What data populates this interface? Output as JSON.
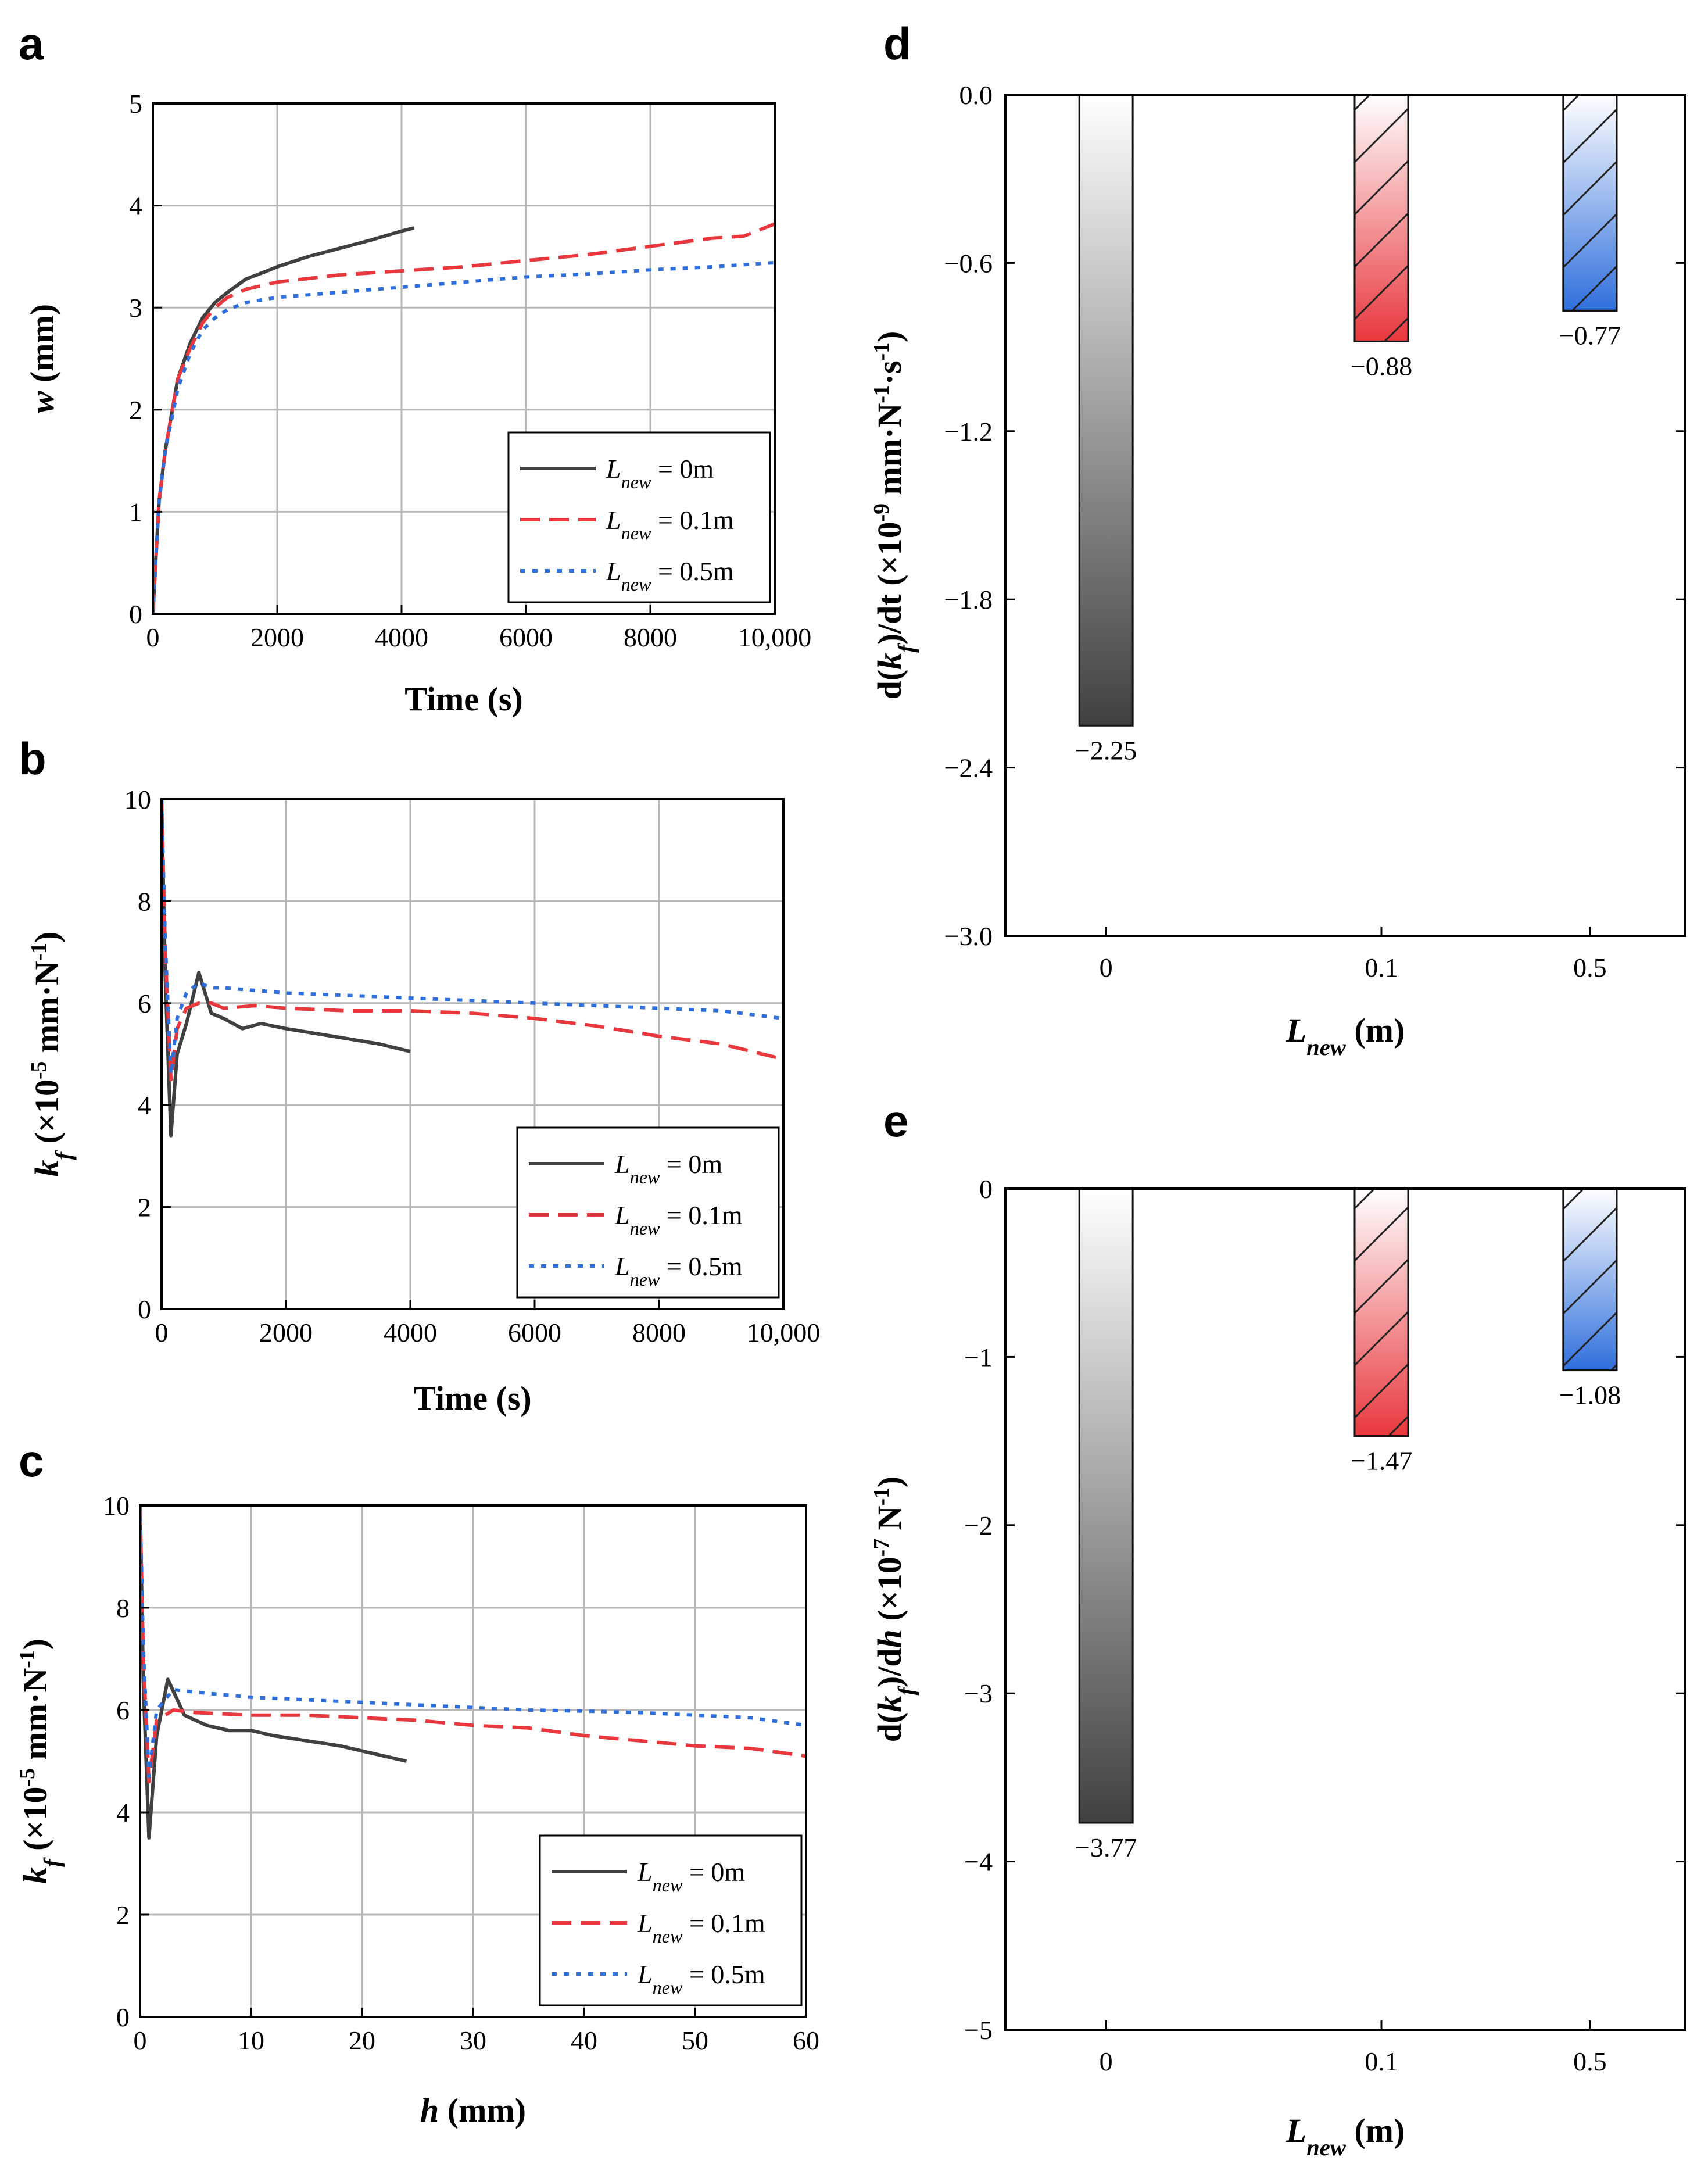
{
  "figure": {
    "panels": [
      "a",
      "b",
      "c",
      "d",
      "e"
    ]
  },
  "colors": {
    "black_series": "#404040",
    "red_series": "#e8383d",
    "blue_series": "#2f6fdc",
    "grid": "#b8b8b8"
  },
  "chart_data": [
    {
      "panel": "a",
      "type": "line",
      "title": "",
      "xlabel": "Time (s)",
      "ylabel": "w (mm)",
      "xlim": [
        0,
        10000
      ],
      "ylim": [
        0,
        5
      ],
      "xticks": [
        "0",
        "2000",
        "4000",
        "6000",
        "8000",
        "10,000"
      ],
      "yticks": [
        "0",
        "1",
        "2",
        "3",
        "4",
        "5"
      ],
      "grid": true,
      "legend_position": "bottom-right",
      "series": [
        {
          "name": "L_new = 0m",
          "label": "L",
          "sub": "new",
          "eq": " = 0m",
          "color": "#404040",
          "style": "solid",
          "x": [
            0,
            100,
            200,
            400,
            600,
            800,
            1000,
            1200,
            1500,
            1800,
            2000,
            2500,
            3000,
            3500,
            4000,
            4200
          ],
          "y": [
            0,
            1.1,
            1.6,
            2.3,
            2.65,
            2.9,
            3.05,
            3.15,
            3.28,
            3.35,
            3.4,
            3.5,
            3.58,
            3.66,
            3.75,
            3.78
          ]
        },
        {
          "name": "L_new = 0.1m",
          "label": "L",
          "sub": "new",
          "eq": " = 0.1m",
          "color": "#e8383d",
          "style": "dashed",
          "x": [
            0,
            100,
            200,
            400,
            600,
            800,
            1000,
            1200,
            1500,
            2000,
            3000,
            4000,
            5000,
            6000,
            7000,
            8000,
            9000,
            9500,
            10000
          ],
          "y": [
            0,
            1.1,
            1.6,
            2.3,
            2.6,
            2.85,
            3.0,
            3.1,
            3.18,
            3.25,
            3.32,
            3.36,
            3.4,
            3.46,
            3.52,
            3.6,
            3.68,
            3.7,
            3.82
          ]
        },
        {
          "name": "L_new = 0.5m",
          "label": "L",
          "sub": "new",
          "eq": " = 0.5m",
          "color": "#2f6fdc",
          "style": "dotted",
          "x": [
            0,
            100,
            200,
            400,
            600,
            800,
            1000,
            1200,
            1500,
            2000,
            3000,
            4000,
            5000,
            6000,
            7000,
            8000,
            9000,
            10000
          ],
          "y": [
            0,
            1.1,
            1.6,
            2.2,
            2.55,
            2.78,
            2.9,
            2.98,
            3.05,
            3.1,
            3.15,
            3.2,
            3.25,
            3.3,
            3.33,
            3.37,
            3.4,
            3.44
          ]
        }
      ]
    },
    {
      "panel": "b",
      "type": "line",
      "title": "",
      "xlabel": "Time (s)",
      "ylabel": "k_f (×10^-5 mm·N^-1)",
      "xlim": [
        0,
        10000
      ],
      "ylim": [
        0,
        10
      ],
      "xticks": [
        "0",
        "2000",
        "4000",
        "6000",
        "8000",
        "10,000"
      ],
      "yticks": [
        "0",
        "2",
        "4",
        "6",
        "8",
        "10"
      ],
      "grid": true,
      "legend_position": "bottom-right",
      "series": [
        {
          "name": "L_new = 0m",
          "label": "L",
          "sub": "new",
          "eq": " = 0m",
          "color": "#404040",
          "style": "solid",
          "x": [
            0,
            60,
            150,
            250,
            400,
            600,
            800,
            1000,
            1300,
            1600,
            2000,
            2500,
            3000,
            3500,
            4000
          ],
          "y": [
            10,
            6.5,
            3.4,
            5.0,
            5.6,
            6.6,
            5.8,
            5.7,
            5.5,
            5.6,
            5.5,
            5.4,
            5.3,
            5.2,
            5.05
          ]
        },
        {
          "name": "L_new = 0.1m",
          "label": "L",
          "sub": "new",
          "eq": " = 0.1m",
          "color": "#e8383d",
          "style": "dashed",
          "x": [
            0,
            60,
            150,
            250,
            400,
            600,
            800,
            1000,
            1500,
            2000,
            3000,
            4000,
            5000,
            6000,
            7000,
            8000,
            9000,
            10000
          ],
          "y": [
            10,
            7.0,
            4.5,
            5.5,
            5.9,
            6.0,
            6.0,
            5.9,
            5.95,
            5.9,
            5.85,
            5.85,
            5.8,
            5.7,
            5.55,
            5.35,
            5.2,
            4.9
          ]
        },
        {
          "name": "L_new = 0.5m",
          "label": "L",
          "sub": "new",
          "eq": " = 0.5m",
          "color": "#2f6fdc",
          "style": "dotted",
          "x": [
            0,
            60,
            150,
            250,
            400,
            600,
            800,
            1000,
            1500,
            2000,
            3000,
            4000,
            5000,
            6000,
            7000,
            8000,
            9000,
            10000
          ],
          "y": [
            10,
            7.2,
            4.6,
            5.7,
            6.2,
            6.4,
            6.3,
            6.3,
            6.25,
            6.2,
            6.15,
            6.1,
            6.05,
            6.0,
            5.95,
            5.9,
            5.85,
            5.7
          ]
        }
      ]
    },
    {
      "panel": "c",
      "type": "line",
      "title": "",
      "xlabel": "h (mm)",
      "ylabel": "k_f (×10^-5 mm·N^-1)",
      "xlim": [
        0,
        60
      ],
      "ylim": [
        0,
        10
      ],
      "xticks": [
        "0",
        "10",
        "20",
        "30",
        "40",
        "50",
        "60"
      ],
      "yticks": [
        "0",
        "2",
        "4",
        "6",
        "8",
        "10"
      ],
      "grid": true,
      "legend_position": "bottom-right",
      "series": [
        {
          "name": "L_new = 0m",
          "label": "L",
          "sub": "new",
          "eq": " = 0m",
          "color": "#404040",
          "style": "solid",
          "x": [
            0,
            0.3,
            0.8,
            1.5,
            2.5,
            4,
            6,
            8,
            10,
            12,
            15,
            18,
            21,
            24
          ],
          "y": [
            10,
            6.5,
            3.5,
            5.5,
            6.6,
            5.9,
            5.7,
            5.6,
            5.6,
            5.5,
            5.4,
            5.3,
            5.15,
            5.0
          ]
        },
        {
          "name": "L_new = 0.1m",
          "label": "L",
          "sub": "new",
          "eq": " = 0.1m",
          "color": "#e8383d",
          "style": "dashed",
          "x": [
            0,
            0.3,
            0.8,
            1.5,
            3,
            5,
            10,
            15,
            20,
            25,
            30,
            35,
            40,
            45,
            50,
            55,
            60
          ],
          "y": [
            10,
            7.0,
            4.6,
            5.8,
            6.0,
            5.95,
            5.9,
            5.9,
            5.85,
            5.8,
            5.7,
            5.65,
            5.5,
            5.4,
            5.3,
            5.25,
            5.1
          ]
        },
        {
          "name": "L_new = 0.5m",
          "label": "L",
          "sub": "new",
          "eq": " = 0.5m",
          "color": "#2f6fdc",
          "style": "dotted",
          "x": [
            0,
            0.3,
            0.8,
            1.5,
            3,
            5,
            10,
            15,
            20,
            25,
            30,
            35,
            40,
            45,
            50,
            55,
            60
          ],
          "y": [
            10,
            7.2,
            4.7,
            6.0,
            6.4,
            6.35,
            6.25,
            6.2,
            6.15,
            6.1,
            6.05,
            6.0,
            5.98,
            5.95,
            5.9,
            5.85,
            5.7
          ]
        }
      ]
    },
    {
      "panel": "d",
      "type": "bar",
      "title": "",
      "xlabel": "L_new (m)",
      "ylabel": "d(k_f)/dt (×10^-9 mm·N^-1·s^-1)",
      "categories": [
        "0",
        "0.1",
        "0.5"
      ],
      "values": [
        -2.25,
        -0.88,
        -0.77
      ],
      "labels": [
        "−2.25",
        "−0.88",
        "−0.77"
      ],
      "ylim": [
        -3.0,
        0.0
      ],
      "yticks": [
        "0.0",
        "−0.6",
        "−1.2",
        "−1.8",
        "−2.4",
        "−3.0"
      ],
      "grid": false,
      "bar_colors": [
        "#404040",
        "#e8383d",
        "#2f6fdc"
      ],
      "hatched": [
        false,
        true,
        true
      ]
    },
    {
      "panel": "e",
      "type": "bar",
      "title": "",
      "xlabel": "L_new (m)",
      "ylabel": "d(k_f)/dh (×10^-7 N^-1)",
      "categories": [
        "0",
        "0.1",
        "0.5"
      ],
      "values": [
        -3.77,
        -1.47,
        -1.08
      ],
      "labels": [
        "−3.77",
        "−1.47",
        "−1.08"
      ],
      "ylim": [
        -5,
        0
      ],
      "yticks": [
        "0",
        "−1",
        "−2",
        "−3",
        "−4",
        "−5"
      ],
      "grid": false,
      "bar_colors": [
        "#404040",
        "#e8383d",
        "#2f6fdc"
      ],
      "hatched": [
        false,
        true,
        true
      ]
    }
  ]
}
